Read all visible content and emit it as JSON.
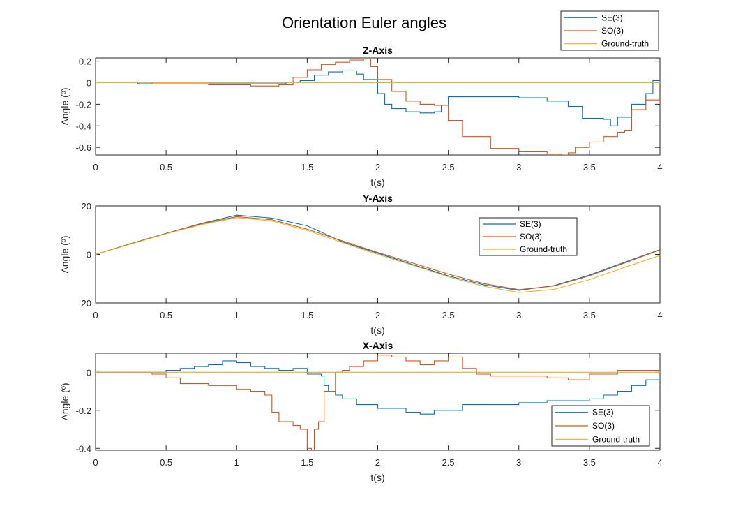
{
  "title": "Orientation Euler angles",
  "legend_global": [
    "SE(3)",
    "SO(3)",
    "Ground-truth"
  ],
  "colors": {
    "SE(3)": "#0072BD",
    "SO(3)": "#D95319",
    "Ground-truth": "#EDB120"
  },
  "chart_data": [
    {
      "type": "line",
      "title": "Z-Axis",
      "xlabel": "t(s)",
      "ylabel": "Angle (º)",
      "xlim": [
        0,
        4
      ],
      "ylim": [
        -0.67,
        0.23
      ],
      "xticks": [
        0,
        0.5,
        1,
        1.5,
        2,
        2.5,
        3,
        3.5,
        4
      ],
      "yticks": [
        -0.6,
        -0.4,
        -0.2,
        0,
        0.2
      ],
      "ytick_labels": [
        "-0.6",
        "-0.4",
        "-0.2",
        "0",
        "0.2"
      ],
      "legend": null,
      "series": [
        {
          "name": "SE(3)",
          "step": true,
          "x": [
            0,
            0.3,
            0.6,
            1.0,
            1.2,
            1.35,
            1.45,
            1.55,
            1.65,
            1.75,
            1.85,
            1.9,
            2.0,
            2.05,
            2.1,
            2.2,
            2.3,
            2.4,
            2.45,
            2.5,
            2.6,
            2.8,
            3.0,
            3.2,
            3.35,
            3.45,
            3.6,
            3.65,
            3.7,
            3.8,
            3.9,
            3.95,
            4.0
          ],
          "y": [
            0,
            -0.01,
            -0.01,
            -0.01,
            -0.01,
            0.0,
            0.02,
            0.07,
            0.1,
            0.11,
            0.08,
            0.03,
            -0.1,
            -0.2,
            -0.24,
            -0.27,
            -0.28,
            -0.27,
            -0.21,
            -0.13,
            -0.13,
            -0.13,
            -0.14,
            -0.17,
            -0.22,
            -0.33,
            -0.34,
            -0.4,
            -0.32,
            -0.2,
            -0.1,
            0.02,
            0.01
          ]
        },
        {
          "name": "SO(3)",
          "step": true,
          "x": [
            0,
            0.4,
            0.8,
            1.1,
            1.3,
            1.4,
            1.5,
            1.6,
            1.7,
            1.8,
            1.9,
            1.95,
            2.0,
            2.1,
            2.2,
            2.3,
            2.4,
            2.5,
            2.6,
            2.8,
            3.0,
            3.2,
            3.3,
            3.35,
            3.4,
            3.5,
            3.6,
            3.7,
            3.75,
            3.8,
            3.9,
            4.0
          ],
          "y": [
            0,
            -0.01,
            -0.02,
            -0.03,
            -0.02,
            0.05,
            0.12,
            0.17,
            0.19,
            0.21,
            0.22,
            0.15,
            0.03,
            -0.08,
            -0.17,
            -0.2,
            -0.21,
            -0.35,
            -0.5,
            -0.61,
            -0.64,
            -0.66,
            -0.67,
            -0.65,
            -0.6,
            -0.55,
            -0.5,
            -0.46,
            -0.44,
            -0.25,
            -0.16,
            -0.2
          ]
        },
        {
          "name": "Ground-truth",
          "step": false,
          "x": [
            0,
            4
          ],
          "y": [
            0,
            0
          ]
        }
      ]
    },
    {
      "type": "line",
      "title": "Y-Axis",
      "xlabel": "t(s)",
      "ylabel": "Angle (º)",
      "xlim": [
        0,
        4
      ],
      "ylim": [
        -20,
        20
      ],
      "xticks": [
        0,
        0.5,
        1,
        1.5,
        2,
        2.5,
        3,
        3.5,
        4
      ],
      "yticks": [
        -20,
        0,
        20
      ],
      "ytick_labels": [
        "-20",
        "0",
        "20"
      ],
      "legend": "upper-center-right",
      "series": [
        {
          "name": "SE(3)",
          "step": false,
          "x": [
            0,
            0.25,
            0.5,
            0.75,
            1.0,
            1.25,
            1.5,
            1.75,
            2.0,
            2.25,
            2.5,
            2.75,
            3.0,
            3.25,
            3.5,
            3.75,
            4.0
          ],
          "y": [
            0,
            4.5,
            8.7,
            12.8,
            16.2,
            15.0,
            11.8,
            5.2,
            0.5,
            -4.2,
            -8.8,
            -12.5,
            -14.8,
            -12.8,
            -8.5,
            -3.2,
            2.0
          ]
        },
        {
          "name": "SO(3)",
          "step": false,
          "x": [
            0,
            0.25,
            0.5,
            0.75,
            1.0,
            1.25,
            1.5,
            1.75,
            2.0,
            2.25,
            2.5,
            2.75,
            3.0,
            3.25,
            3.5,
            3.75,
            4.0
          ],
          "y": [
            0,
            4.4,
            8.6,
            12.6,
            15.6,
            14.3,
            10.4,
            5.6,
            0.8,
            -3.6,
            -8.1,
            -12.0,
            -14.5,
            -13.0,
            -8.8,
            -3.5,
            1.8
          ]
        },
        {
          "name": "Ground-truth",
          "step": false,
          "x": [
            0,
            0.25,
            0.5,
            0.75,
            1.0,
            1.25,
            1.5,
            1.75,
            2.0,
            2.25,
            2.5,
            2.75,
            3.0,
            3.25,
            3.5,
            3.75,
            4.0
          ],
          "y": [
            0,
            4.3,
            8.5,
            12.3,
            15.2,
            13.8,
            9.9,
            4.9,
            0,
            -4.5,
            -9.2,
            -13.1,
            -15.7,
            -14.4,
            -10.4,
            -5.3,
            -0.5
          ]
        }
      ]
    },
    {
      "type": "line",
      "title": "X-Axis",
      "xlabel": "t(s)",
      "ylabel": "Angle (º)",
      "xlim": [
        0,
        4
      ],
      "ylim": [
        -0.41,
        0.1
      ],
      "xticks": [
        0,
        0.5,
        1,
        1.5,
        2,
        2.5,
        3,
        3.5,
        4
      ],
      "yticks": [
        -0.4,
        -0.2,
        0
      ],
      "ytick_labels": [
        "-0.4",
        "-0.2",
        "0"
      ],
      "legend": "lower-right",
      "series": [
        {
          "name": "SE(3)",
          "step": true,
          "x": [
            0,
            0.4,
            0.5,
            0.6,
            0.7,
            0.8,
            0.9,
            1.0,
            1.1,
            1.2,
            1.3,
            1.4,
            1.5,
            1.6,
            1.62,
            1.65,
            1.7,
            1.75,
            1.85,
            2.0,
            2.2,
            2.3,
            2.4,
            2.6,
            2.8,
            3.0,
            3.2,
            3.4,
            3.5,
            3.6,
            3.7,
            3.8,
            3.9,
            4.0
          ],
          "y": [
            0,
            0,
            0.01,
            0.02,
            0.03,
            0.04,
            0.06,
            0.05,
            0.03,
            0.02,
            0.01,
            0.02,
            -0.01,
            -0.02,
            -0.07,
            -0.1,
            -0.12,
            -0.14,
            -0.17,
            -0.19,
            -0.21,
            -0.22,
            -0.2,
            -0.17,
            -0.17,
            -0.16,
            -0.15,
            -0.15,
            -0.14,
            -0.12,
            -0.1,
            -0.07,
            -0.04,
            -0.02
          ]
        },
        {
          "name": "SO(3)",
          "step": true,
          "x": [
            0,
            0.4,
            0.5,
            0.6,
            0.8,
            1.0,
            1.1,
            1.2,
            1.25,
            1.3,
            1.4,
            1.45,
            1.5,
            1.53,
            1.55,
            1.58,
            1.62,
            1.7,
            1.75,
            1.8,
            1.9,
            2.0,
            2.1,
            2.2,
            2.3,
            2.4,
            2.5,
            2.6,
            2.7,
            2.8,
            3.0,
            3.2,
            3.35,
            3.5,
            3.7,
            3.9,
            4.0
          ],
          "y": [
            0,
            -0.01,
            -0.03,
            -0.06,
            -0.07,
            -0.09,
            -0.1,
            -0.12,
            -0.21,
            -0.26,
            -0.28,
            -0.3,
            -0.4,
            -0.42,
            -0.3,
            -0.26,
            -0.1,
            0.0,
            0.01,
            0.03,
            0.06,
            0.09,
            0.08,
            0.06,
            0.04,
            0.06,
            0.08,
            0.02,
            -0.01,
            -0.02,
            -0.02,
            -0.03,
            -0.04,
            -0.01,
            0.01,
            0.01,
            0.0
          ]
        },
        {
          "name": "Ground-truth",
          "step": false,
          "x": [
            0,
            4
          ],
          "y": [
            0,
            0
          ]
        }
      ]
    }
  ]
}
